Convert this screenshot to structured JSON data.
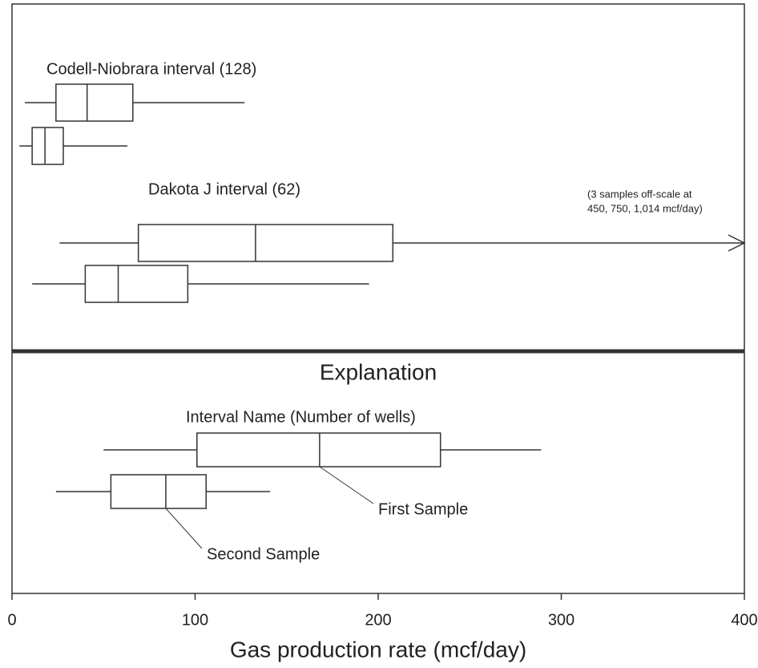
{
  "chart_data": {
    "type": "boxplot",
    "groups": [
      {
        "label": "Codell-Niobrara interval (128)",
        "samples": [
          {
            "min": 7,
            "q1": 24,
            "median": 41,
            "q3": 66,
            "max": 127
          },
          {
            "min": 4,
            "q1": 11,
            "median": 18,
            "q3": 28,
            "max": 63
          }
        ]
      },
      {
        "label": "Dakota J interval (62)",
        "samples": [
          {
            "min": 26,
            "q1": 69,
            "median": 133,
            "q3": 208,
            "max": 1014
          },
          {
            "min": 11,
            "q1": 40,
            "median": 58,
            "q3": 96,
            "max": 195
          }
        ]
      }
    ],
    "note": [
      "(3 samples off-scale at",
      "450, 750, 1,014 mcf/day)"
    ],
    "explanation": {
      "title": "Explanation",
      "label": "Interval Name  (Number of wells)",
      "samples": [
        {
          "name": "First Sample",
          "min": 50,
          "q1": 101,
          "median": 168,
          "q3": 234,
          "max": 289
        },
        {
          "name": "Second Sample",
          "min": 24,
          "q1": 54,
          "median": 84,
          "q3": 106,
          "max": 141
        }
      ]
    },
    "xlim": [
      0,
      400
    ],
    "xticks": [
      0,
      100,
      200,
      300,
      400
    ],
    "xlabel": "Gas production rate (mcf/day)"
  }
}
